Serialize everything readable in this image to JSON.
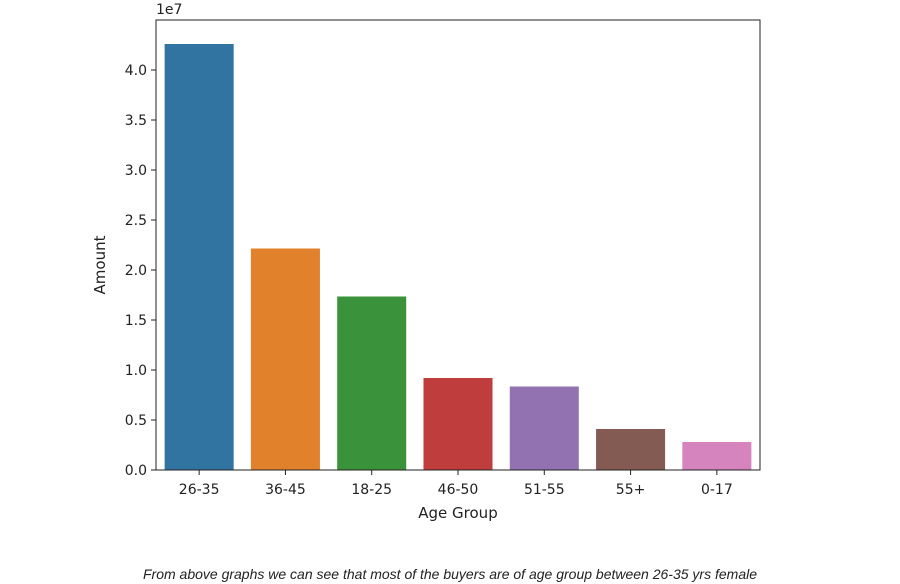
{
  "chart_data": {
    "type": "bar",
    "title": "",
    "xlabel": "Age Group",
    "ylabel": "Amount",
    "scale_label": "1e7",
    "categories": [
      "26-35",
      "36-45",
      "18-25",
      "46-50",
      "51-55",
      "55+",
      "0-17"
    ],
    "values": [
      42600000,
      22150000,
      17350000,
      9200000,
      8350000,
      4100000,
      2800000
    ],
    "ylim": [
      0,
      4.5
    ],
    "yticks": [
      0.0,
      0.5,
      1.0,
      1.5,
      2.0,
      2.5,
      3.0,
      3.5,
      4.0
    ],
    "ytick_labels": [
      "0.0",
      "0.5",
      "1.0",
      "1.5",
      "2.0",
      "2.5",
      "3.0",
      "3.5",
      "4.0"
    ],
    "colors": [
      "#3274a1",
      "#e1812c",
      "#3a923a",
      "#c03d3e",
      "#9372b2",
      "#845b53",
      "#d684bd"
    ],
    "grid": false,
    "legend": "none"
  },
  "caption": "From above graphs we can see that most of the buyers are of age group between 26-35 yrs female"
}
